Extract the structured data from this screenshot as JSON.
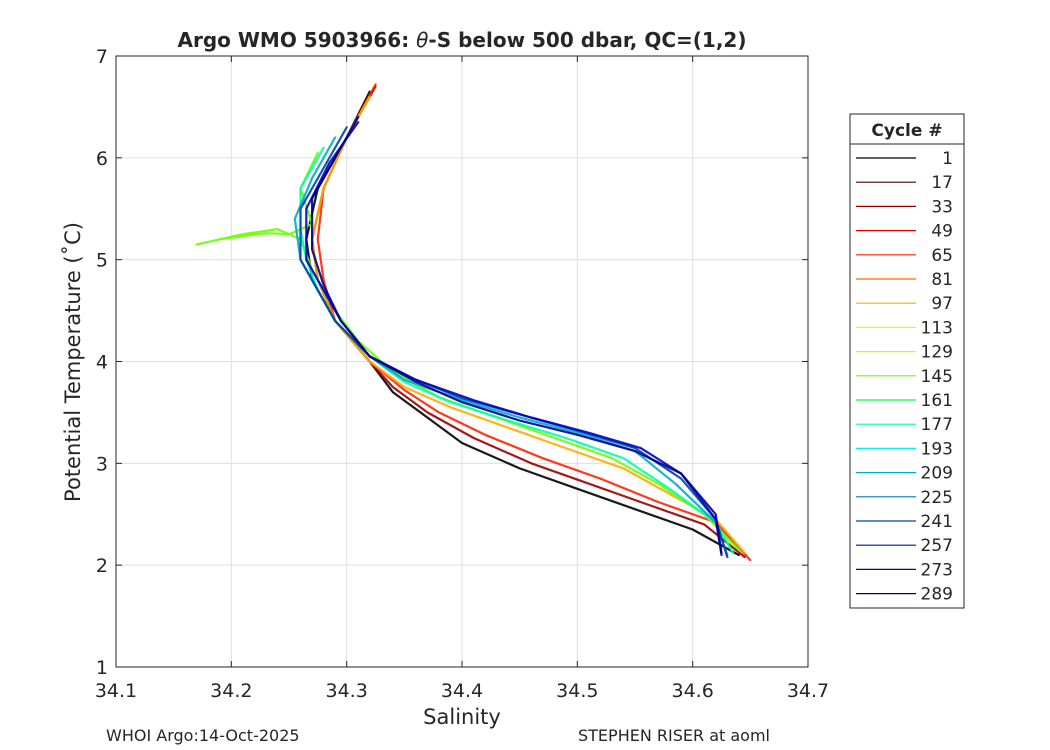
{
  "chart_data": {
    "type": "line",
    "title": "Argo WMO 5903966: θ-S below 500 dbar,  QC=(1,2)",
    "title_parts": {
      "prefix": "Argo WMO 5903966: ",
      "symbol": "θ",
      "suffix": "-S below 500 dbar,  QC=(1,2)"
    },
    "xlabel": "Salinity",
    "ylabel": "Potential Temperature (˚C)",
    "xlim": [
      34.1,
      34.7
    ],
    "ylim": [
      1,
      7
    ],
    "xticks": [
      "34.1",
      "34.2",
      "34.3",
      "34.4",
      "34.5",
      "34.6",
      "34.7"
    ],
    "yticks": [
      "1",
      "2",
      "3",
      "4",
      "5",
      "6",
      "7"
    ],
    "grid": true,
    "legend_position": "outside-right",
    "legend_title": "Cycle #",
    "legend": [
      {
        "label": "1",
        "color": "#000000"
      },
      {
        "label": "17",
        "color": "#550000"
      },
      {
        "label": "33",
        "color": "#990000"
      },
      {
        "label": "49",
        "color": "#dd0000"
      },
      {
        "label": "65",
        "color": "#ff2200"
      },
      {
        "label": "81",
        "color": "#ff6600"
      },
      {
        "label": "97",
        "color": "#ffaa00"
      },
      {
        "label": "113",
        "color": "#ffee00"
      },
      {
        "label": "129",
        "color": "#ccff00"
      },
      {
        "label": "145",
        "color": "#66ff00"
      },
      {
        "label": "161",
        "color": "#00ff44"
      },
      {
        "label": "177",
        "color": "#00ffaa"
      },
      {
        "label": "193",
        "color": "#00eeee"
      },
      {
        "label": "209",
        "color": "#00aacc"
      },
      {
        "label": "225",
        "color": "#0077bb"
      },
      {
        "label": "241",
        "color": "#0044aa"
      },
      {
        "label": "257",
        "color": "#0011aa"
      },
      {
        "label": "273",
        "color": "#0000cc"
      },
      {
        "label": "289",
        "color": "#000088"
      }
    ],
    "series": [
      {
        "color": "#000000",
        "x": [
          34.32,
          34.3,
          34.275,
          34.265,
          34.27,
          34.29,
          34.32,
          34.34,
          34.37,
          34.4,
          34.45,
          34.5,
          34.55,
          34.6,
          34.64
        ],
        "y": [
          6.65,
          6.2,
          5.7,
          5.2,
          4.8,
          4.4,
          4.0,
          3.7,
          3.45,
          3.2,
          2.95,
          2.75,
          2.55,
          2.35,
          2.1
        ]
      },
      {
        "color": "#990000",
        "x": [
          34.325,
          34.3,
          34.28,
          34.27,
          34.275,
          34.29,
          34.32,
          34.34,
          34.37,
          34.41,
          34.46,
          34.51,
          34.56,
          34.61,
          34.645
        ],
        "y": [
          6.7,
          6.2,
          5.7,
          5.2,
          4.8,
          4.4,
          4.0,
          3.75,
          3.5,
          3.25,
          3.0,
          2.8,
          2.6,
          2.4,
          2.08
        ]
      },
      {
        "color": "#ff2200",
        "x": [
          34.325,
          34.3,
          34.28,
          34.275,
          34.28,
          34.29,
          34.32,
          34.35,
          34.38,
          34.42,
          34.47,
          34.52,
          34.57,
          34.62,
          34.65
        ],
        "y": [
          6.72,
          6.2,
          5.7,
          5.2,
          4.8,
          4.4,
          4.0,
          3.72,
          3.5,
          3.28,
          3.05,
          2.85,
          2.62,
          2.42,
          2.05
        ]
      },
      {
        "color": "#ffaa00",
        "x": [
          34.32,
          34.3,
          34.28,
          34.27,
          34.275,
          34.29,
          34.32,
          34.35,
          34.39,
          34.44,
          34.49,
          34.54,
          34.58,
          34.62,
          34.645
        ],
        "y": [
          6.6,
          6.2,
          5.7,
          5.2,
          4.8,
          4.4,
          4.0,
          3.75,
          3.55,
          3.35,
          3.15,
          2.95,
          2.7,
          2.45,
          2.12
        ]
      },
      {
        "color": "#66ff00",
        "x": [
          34.275,
          34.26,
          34.27,
          34.25,
          34.23,
          34.19,
          34.17,
          34.21,
          34.24,
          34.26,
          34.27,
          34.29,
          34.31,
          34.34,
          34.38,
          34.43,
          34.48,
          34.53,
          34.57,
          34.61,
          34.64
        ],
        "y": [
          6.05,
          5.7,
          5.35,
          5.25,
          5.26,
          5.2,
          5.15,
          5.25,
          5.3,
          5.2,
          4.9,
          4.5,
          4.2,
          3.9,
          3.65,
          3.45,
          3.25,
          3.05,
          2.8,
          2.5,
          2.15
        ]
      },
      {
        "color": "#00ffaa",
        "x": [
          34.28,
          34.26,
          34.26,
          34.265,
          34.275,
          34.29,
          34.32,
          34.35,
          34.39,
          34.44,
          34.49,
          34.54,
          34.58,
          34.62,
          34.635
        ],
        "y": [
          6.1,
          5.7,
          5.3,
          5.0,
          4.7,
          4.4,
          4.05,
          3.8,
          3.6,
          3.42,
          3.25,
          3.05,
          2.75,
          2.42,
          2.12
        ]
      },
      {
        "color": "#00aacc",
        "x": [
          34.29,
          34.27,
          34.255,
          34.26,
          34.275,
          34.29,
          34.32,
          34.35,
          34.4,
          34.45,
          34.5,
          34.55,
          34.585,
          34.62,
          34.63
        ],
        "y": [
          6.2,
          5.8,
          5.4,
          5.0,
          4.7,
          4.4,
          4.05,
          3.82,
          3.62,
          3.45,
          3.3,
          3.12,
          2.8,
          2.42,
          2.1
        ]
      },
      {
        "color": "#0044aa",
        "x": [
          34.3,
          34.28,
          34.26,
          34.26,
          34.275,
          34.29,
          34.32,
          34.36,
          34.4,
          34.45,
          34.5,
          34.55,
          34.59,
          34.62,
          34.63
        ],
        "y": [
          6.3,
          5.9,
          5.5,
          5.0,
          4.7,
          4.4,
          4.05,
          3.82,
          3.64,
          3.48,
          3.32,
          3.15,
          2.85,
          2.45,
          2.08
        ]
      },
      {
        "color": "#0000cc",
        "x": [
          34.31,
          34.285,
          34.265,
          34.265,
          34.28,
          34.295,
          34.32,
          34.36,
          34.41,
          34.46,
          34.51,
          34.555,
          34.59,
          34.62,
          34.625
        ],
        "y": [
          6.35,
          5.95,
          5.5,
          5.0,
          4.7,
          4.4,
          4.05,
          3.82,
          3.62,
          3.45,
          3.3,
          3.15,
          2.9,
          2.45,
          2.1
        ]
      },
      {
        "color": "#000088",
        "x": [
          34.31,
          34.29,
          34.27,
          34.27,
          34.28,
          34.295,
          34.32,
          34.36,
          34.4,
          34.45,
          34.5,
          34.55,
          34.59,
          34.62,
          34.625
        ],
        "y": [
          6.4,
          6.0,
          5.6,
          5.1,
          4.75,
          4.4,
          4.05,
          3.8,
          3.6,
          3.42,
          3.28,
          3.12,
          2.9,
          2.5,
          2.12
        ]
      }
    ]
  },
  "footer": {
    "left": "WHOI Argo:14-Oct-2025",
    "right": "STEPHEN RISER at aoml"
  }
}
